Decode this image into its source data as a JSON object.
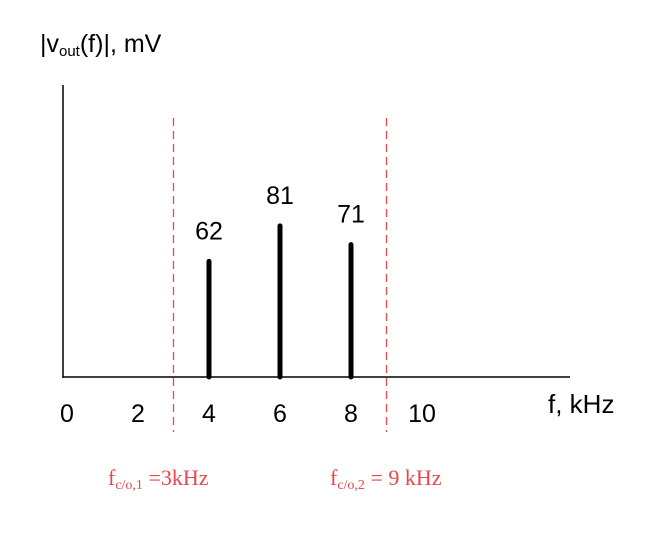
{
  "chart_data": {
    "type": "bar",
    "ylabel_parts": {
      "pre": "|v",
      "sub": "out",
      "post": "(f)|, mV"
    },
    "xlabel": "f, kHz",
    "x_ticks": [
      "0",
      "2",
      "4",
      "6",
      "8",
      "10"
    ],
    "x": [
      4,
      6,
      8
    ],
    "values": [
      62,
      81,
      71
    ],
    "data_labels": [
      "62",
      "81",
      "71"
    ],
    "xlim": [
      0,
      10
    ],
    "cutoffs": [
      {
        "x": 3,
        "pre": "f",
        "sub": "c/o,1",
        "post": " =3kHz"
      },
      {
        "x": 9,
        "pre": "f",
        "sub": "c/o,2",
        "post": " = 9 kHz"
      }
    ],
    "colors": {
      "bars": "#000000",
      "cutoff_lines": "#e8474b",
      "cutoff_text": "#e8474b"
    },
    "grid": false
  }
}
